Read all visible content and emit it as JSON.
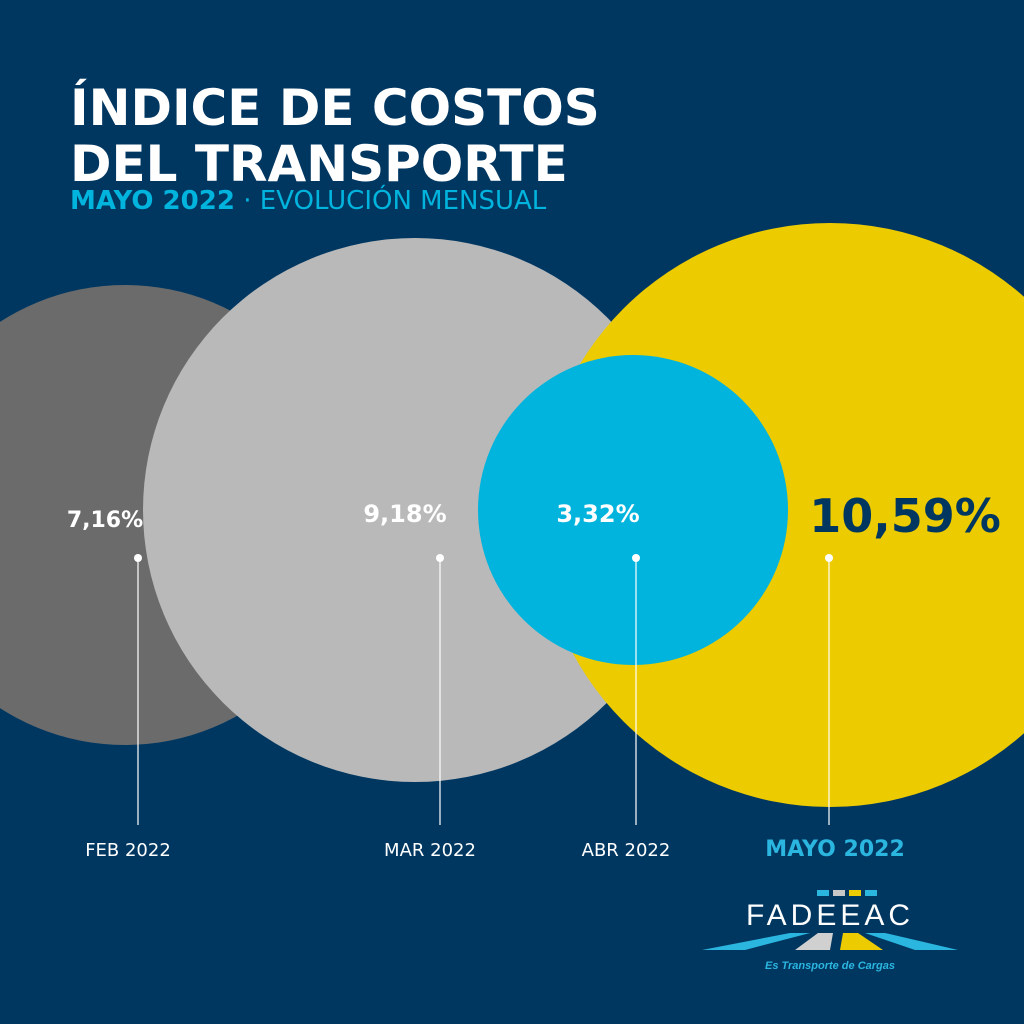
{
  "header": {
    "title_line1": "ÍNDICE DE COSTOS",
    "title_line2": "DEL TRANSPORTE",
    "subtitle_bold": "MAYO 2022",
    "subtitle_sep": " · ",
    "subtitle_rest": "EVOLUCIÓN MENSUAL"
  },
  "chart_data": {
    "type": "bubble",
    "title": "ÍNDICE DE COSTOS DEL TRANSPORTE",
    "categories": [
      "FEB 2022",
      "MAR 2022",
      "ABR 2022",
      "MAYO 2022"
    ],
    "values": [
      7.16,
      9.18,
      3.32,
      10.59
    ],
    "value_labels": [
      "7,16%",
      "9,18%",
      "3,32%",
      "10,59%"
    ],
    "colors": [
      "#6b6b6b",
      "#b9b9b9",
      "#00b4dd",
      "#eccb00"
    ],
    "highlight": "MAYO 2022"
  },
  "logo": {
    "name": "FADEEAC",
    "tagline": "Es Transporte de Cargas"
  }
}
